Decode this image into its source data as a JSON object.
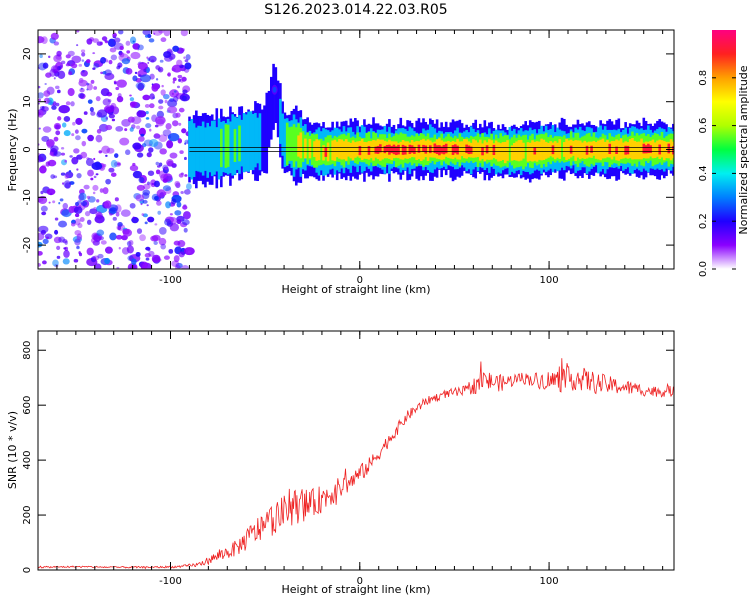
{
  "figure": {
    "title": "S126.2023.014.22.03.R05"
  },
  "chart_data": [
    {
      "type": "heatmap",
      "xlabel": "Height of straight line (km)",
      "ylabel": "Frequency (Hz)",
      "xlim": [
        -170,
        166
      ],
      "ylim": [
        -25,
        25
      ],
      "xticks": [
        -100,
        0,
        100
      ],
      "yticks": [
        -20,
        -10,
        0,
        10,
        20
      ],
      "colorbar": {
        "label": "Normalized spectral amplitude",
        "range": [
          0,
          1
        ],
        "ticks": [
          "0.0",
          "0.2",
          "0.4",
          "0.6",
          "0.8"
        ],
        "tick_values": [
          0,
          0.2,
          0.4,
          0.6,
          0.8
        ],
        "colors": [
          "#ffffff",
          "#8a00ff",
          "#1f00ff",
          "#0080ff",
          "#00f0f0",
          "#00ff40",
          "#b0ff00",
          "#ffff00",
          "#ffa000",
          "#ff2020",
          "#ff0080"
        ]
      },
      "noise_region": {
        "x": [
          -170,
          -90
        ],
        "frequency": [
          -25,
          25
        ],
        "amplitude": "0.1-0.3"
      },
      "ridge": [
        {
          "x": -90,
          "frequency": 0.0,
          "amplitude": 0.4
        },
        {
          "x": -80,
          "frequency": 0.0,
          "amplitude": 0.45
        },
        {
          "x": -70,
          "frequency": 0.5,
          "amplitude": 0.55
        },
        {
          "x": -60,
          "frequency": 1.5,
          "amplitude": 0.5
        },
        {
          "x": -50,
          "frequency": 2.0,
          "amplitude": 0.35
        },
        {
          "x": -45,
          "frequency": 12.5,
          "amplitude": 0.25
        },
        {
          "x": -40,
          "frequency": 1.5,
          "amplitude": 0.55
        },
        {
          "x": -30,
          "frequency": 0.5,
          "amplitude": 0.75
        },
        {
          "x": -20,
          "frequency": -0.5,
          "amplitude": 0.8
        },
        {
          "x": -10,
          "frequency": 0.0,
          "amplitude": 0.85
        },
        {
          "x": 0,
          "frequency": 0.0,
          "amplitude": 0.9
        },
        {
          "x": 20,
          "frequency": 0.0,
          "amplitude": 0.95
        },
        {
          "x": 40,
          "frequency": 0.0,
          "amplitude": 0.95
        },
        {
          "x": 60,
          "frequency": 0.0,
          "amplitude": 0.95
        },
        {
          "x": 80,
          "frequency": -0.5,
          "amplitude": 0.85
        },
        {
          "x": 100,
          "frequency": 0.0,
          "amplitude": 0.8
        },
        {
          "x": 120,
          "frequency": 0.0,
          "amplitude": 0.85
        },
        {
          "x": 140,
          "frequency": 0.0,
          "amplitude": 0.9
        },
        {
          "x": 160,
          "frequency": 0.0,
          "amplitude": 0.9
        }
      ],
      "reference_line": {
        "frequency": 0
      }
    },
    {
      "type": "line",
      "xlabel": "Height of straight line (km)",
      "ylabel": "SNR (10 * v/v)",
      "xlim": [
        -170,
        166
      ],
      "ylim": [
        0,
        870
      ],
      "xticks": [
        -100,
        0,
        100
      ],
      "yticks": [
        0,
        200,
        400,
        600,
        800
      ],
      "series": [
        {
          "color": "#ee2222",
          "x": [
            -170,
            -150,
            -130,
            -110,
            -95,
            -85,
            -75,
            -65,
            -55,
            -45,
            -35,
            -25,
            -15,
            -5,
            5,
            15,
            25,
            35,
            45,
            55,
            65,
            75,
            85,
            95,
            105,
            115,
            125,
            135,
            145,
            155,
            166
          ],
          "y": [
            10,
            12,
            10,
            10,
            12,
            20,
            50,
            80,
            140,
            190,
            230,
            240,
            280,
            320,
            380,
            470,
            560,
            615,
            640,
            650,
            690,
            680,
            700,
            690,
            690,
            700,
            680,
            670,
            660,
            650,
            650
          ],
          "noise": [
            3,
            3,
            3,
            3,
            4,
            8,
            20,
            30,
            50,
            60,
            65,
            55,
            45,
            35,
            30,
            25,
            20,
            15,
            15,
            20,
            40,
            30,
            20,
            30,
            45,
            45,
            40,
            30,
            25,
            20,
            20
          ]
        }
      ]
    }
  ]
}
